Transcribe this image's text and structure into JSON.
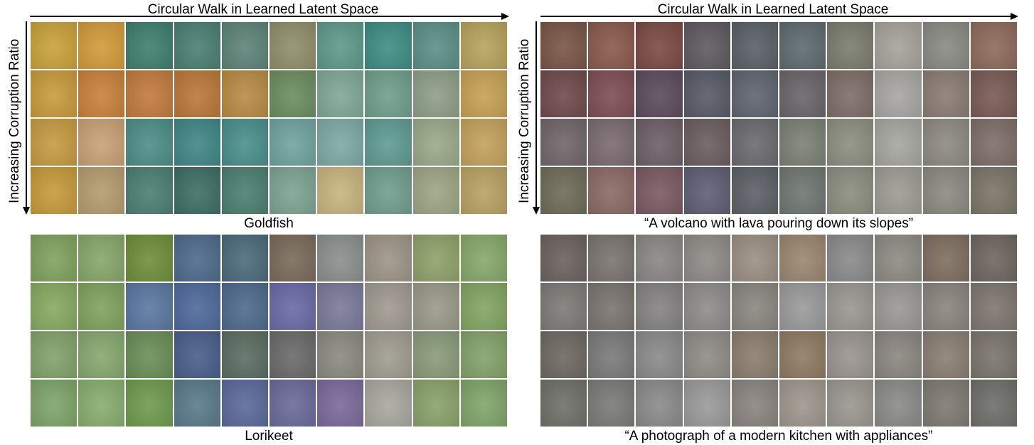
{
  "header_left": "Circular Walk in Learned Latent Space",
  "header_right": "Circular Walk in Learned Latent Space",
  "axis_label_left": "Increasing  Corruption Ratio",
  "axis_label_right": "Increasing  Corruption Ratio",
  "panels": [
    {
      "caption": "Goldfish",
      "tile_colors": [
        [
          "#c9a23a",
          "#d39a3a",
          "#3f7e6e",
          "#4a7f73",
          "#5d8478",
          "#8f8f6a",
          "#5c9a8a",
          "#3e8d83",
          "#5c8f86",
          "#b7a35c"
        ],
        [
          "#c89b3d",
          "#c8813a",
          "#c27a3c",
          "#b97838",
          "#b88b44",
          "#6b8d60",
          "#7ea896",
          "#6f9f8a",
          "#8f9e86",
          "#c6a155"
        ],
        [
          "#c69a42",
          "#c9a176",
          "#4d8e88",
          "#3f8786",
          "#4a8f8c",
          "#6fa3a0",
          "#7daaa3",
          "#5e9b93",
          "#9aa98a",
          "#c3a25c"
        ],
        [
          "#c79a3a",
          "#b59c6f",
          "#4b7f72",
          "#3d6e64",
          "#4c7f6f",
          "#7da392",
          "#c7b47e",
          "#6f9e8e",
          "#9da683",
          "#b9a262"
        ]
      ]
    },
    {
      "caption": "“A volcano with lava pouring down its slopes”",
      "tile_colors": [
        [
          "#7a5547",
          "#8a5a4c",
          "#7b4a45",
          "#5e5a5f",
          "#5a5f69",
          "#5e6a70",
          "#7b7c6f",
          "#a5a39a",
          "#8a8a84",
          "#8e6a5a"
        ],
        [
          "#6e4a4a",
          "#7e4d55",
          "#5b4b5c",
          "#575a66",
          "#5f6470",
          "#6a6468",
          "#7d6d67",
          "#a7a6a2",
          "#8a7c74",
          "#7a5a55"
        ],
        [
          "#6f6668",
          "#7a6b70",
          "#6d5f66",
          "#6b5d60",
          "#6a6a70",
          "#7b8173",
          "#8b8e80",
          "#a6a6a0",
          "#8e8a80",
          "#7d6e68"
        ],
        [
          "#6f6b58",
          "#8b6a66",
          "#7a5a62",
          "#5f5e74",
          "#5c6066",
          "#6f7670",
          "#8c8d80",
          "#9c9c94",
          "#8a8a80",
          "#7a7566"
        ]
      ]
    },
    {
      "caption": "Lorikeet",
      "tile_colors": [
        [
          "#7fa35e",
          "#86a76a",
          "#6e8f3a",
          "#4e6a8a",
          "#4c6a7a",
          "#7a6a5a",
          "#8a8f8e",
          "#9e9488",
          "#8fa16a",
          "#86a86a"
        ],
        [
          "#86aa62",
          "#7fa35e",
          "#5a78a0",
          "#4e6a9a",
          "#4e6a8a",
          "#6a6aa8",
          "#7a7a9a",
          "#a09a90",
          "#9a9a88",
          "#82a564"
        ],
        [
          "#80a36a",
          "#86a86e",
          "#6a8e58",
          "#4a5e8a",
          "#5a6e62",
          "#6a6a6a",
          "#8a8a80",
          "#a09c90",
          "#8a9a7a",
          "#82a26a"
        ],
        [
          "#7ea46a",
          "#88ae6e",
          "#6e9a4e",
          "#5a7a8a",
          "#5a6a9a",
          "#6a6a9a",
          "#7a6a9a",
          "#a8a8a0",
          "#8aa26a",
          "#80a46a"
        ]
      ]
    },
    {
      "caption": "“A photograph of a modern kitchen with appliances”",
      "tile_colors": [
        [
          "#6a625e",
          "#7a7470",
          "#8a8684",
          "#8e8a86",
          "#9a8f82",
          "#9a8670",
          "#8a8a8a",
          "#8e8a84",
          "#7e6e60",
          "#6e6660"
        ],
        [
          "#7e7a76",
          "#7a7470",
          "#848282",
          "#8e8c8a",
          "#8a8680",
          "#9a9a9a",
          "#9a9690",
          "#9a9894",
          "#8a847e",
          "#7e7670"
        ],
        [
          "#6e6862",
          "#7a7a7a",
          "#8a8a8a",
          "#8e8c86",
          "#8a7e6e",
          "#8e7a62",
          "#9a9490",
          "#8a8680",
          "#8a7e72",
          "#7a746c"
        ],
        [
          "#6e7068",
          "#7a7a78",
          "#8a8a8a",
          "#9a9a9a",
          "#8a8480",
          "#9e968e",
          "#9a9690",
          "#8a8a88",
          "#7e7a72",
          "#6e6e6a"
        ]
      ]
    }
  ]
}
